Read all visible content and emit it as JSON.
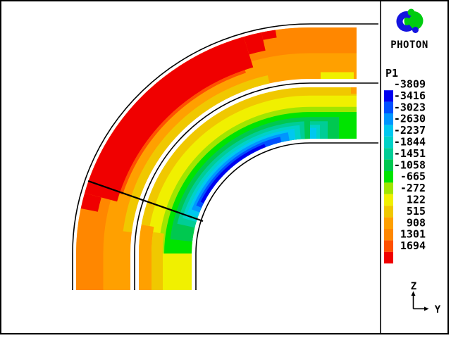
{
  "window": {
    "background": "#FFFFFF",
    "frame_color": "#000000"
  },
  "branding": {
    "logo_label": "PHOTON",
    "logo_blue": "#1414E0",
    "logo_green": "#00CC10"
  },
  "legend": {
    "title": "P1",
    "entries": [
      {
        "value": "-3809",
        "color": "#0000F0"
      },
      {
        "value": "-3416",
        "color": "#0050FF"
      },
      {
        "value": "-3023",
        "color": "#0096FF"
      },
      {
        "value": "-2630",
        "color": "#00C8F0"
      },
      {
        "value": "-2237",
        "color": "#00D2C8"
      },
      {
        "value": "-1844",
        "color": "#00CD96"
      },
      {
        "value": "-1451",
        "color": "#00C850"
      },
      {
        "value": "-1058",
        "color": "#00E400"
      },
      {
        "value": "-665",
        "color": "#A0E600"
      },
      {
        "value": "-272",
        "color": "#F0F000"
      },
      {
        "value": "122",
        "color": "#F0C800"
      },
      {
        "value": "515",
        "color": "#FFA000"
      },
      {
        "value": "908",
        "color": "#FF8700"
      },
      {
        "value": "1301",
        "color": "#FF5000"
      },
      {
        "value": "1694",
        "color": "#F00000"
      }
    ]
  },
  "axis_indicator": {
    "vertical": "Z",
    "horizontal": "Y"
  },
  "chart_data": {
    "type": "contour",
    "variable": "P1",
    "plane": "Z-Y",
    "title": "PHOTON contour plot of P1 over a 90-degree pipe bend (two concentric annular ducts)",
    "levels": [
      -3809,
      -3416,
      -3023,
      -2630,
      -2237,
      -1844,
      -1451,
      -1058,
      -665,
      -272,
      122,
      515,
      908,
      1301,
      1694
    ],
    "level_colors": [
      "#0000F0",
      "#0050FF",
      "#0096FF",
      "#00C8F0",
      "#00D2C8",
      "#00CD96",
      "#00C850",
      "#00E400",
      "#A0E600",
      "#F0F000",
      "#F0C800",
      "#FFA000",
      "#FF8700",
      "#FF5000",
      "#F00000"
    ],
    "legend_position": "right",
    "description": "Outer annular duct: high values (red ~1694) along the outer wall fading to orange/gold at its inner edge. Inner annular duct: yellow near its outer wall grading through green and cyan to a dark-blue minimum (~-3809) hugging the inner wall around the 45-degree section; a straight black section line crosses both ducts near 45 degrees."
  }
}
